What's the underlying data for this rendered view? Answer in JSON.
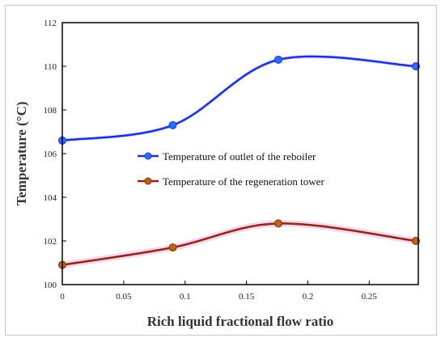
{
  "chart_data": {
    "type": "line",
    "title": "",
    "xlabel": "Rich liquid fractional flow ratio",
    "ylabel": "Temperature (°C)",
    "xlim": [
      0,
      0.29
    ],
    "ylim": [
      100,
      112
    ],
    "xticks": [
      0,
      0.05,
      0.1,
      0.15,
      0.2,
      0.25
    ],
    "xtick_labels": [
      "0",
      "0.05",
      "0.1",
      "0.15",
      "0.2",
      "0.25"
    ],
    "yticks": [
      100,
      102,
      104,
      106,
      108,
      110,
      112
    ],
    "ytick_labels": [
      "100",
      "102",
      "104",
      "106",
      "108",
      "110",
      "112"
    ],
    "grid": false,
    "legend_position": "center",
    "series": [
      {
        "name": "Temperature of outlet of the reboiler",
        "color": "#1f2fd6",
        "marker_color": "#2b6fff",
        "x": [
          0,
          0.09,
          0.176,
          0.288
        ],
        "y": [
          106.6,
          107.3,
          110.3,
          110.0
        ]
      },
      {
        "name": "Temperature of the regeneration tower",
        "color": "#8b2a0e",
        "marker_color": "#b8650f",
        "x": [
          0,
          0.09,
          0.176,
          0.288
        ],
        "y": [
          100.9,
          101.7,
          102.8,
          102.0
        ]
      }
    ]
  }
}
